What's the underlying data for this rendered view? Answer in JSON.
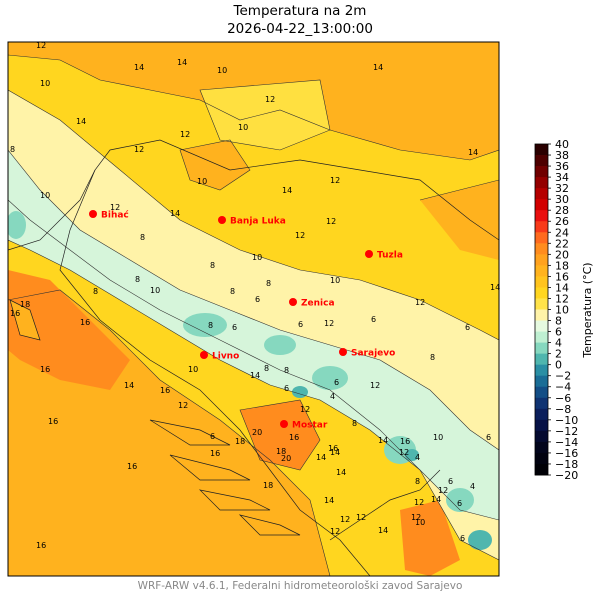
{
  "title": {
    "line1": "Temperatura na 2m",
    "line2": "2026-04-22_13:00:00"
  },
  "footer": "WRF-ARW v4.6.1, Federalni hidrometeorološki zavod Sarajevo",
  "colorbar": {
    "label": "Temperatura (°C)",
    "ticks": [
      "40",
      "38",
      "36",
      "34",
      "32",
      "30",
      "28",
      "26",
      "24",
      "22",
      "20",
      "18",
      "16",
      "14",
      "12",
      "10",
      "8",
      "6",
      "4",
      "2",
      "0",
      "−2",
      "−4",
      "−6",
      "−8",
      "−10",
      "−12",
      "−14",
      "−16",
      "−18",
      "−20"
    ],
    "colors": [
      "#2a0000",
      "#4d0000",
      "#700000",
      "#940000",
      "#b50000",
      "#d20000",
      "#ea1010",
      "#f83a1a",
      "#ff6a1e",
      "#ff8c1e",
      "#ffa21e",
      "#ffb31e",
      "#ffc41e",
      "#ffd620",
      "#ffe34a",
      "#fff3a8",
      "#e6fae0",
      "#bff0d2",
      "#86d8bf",
      "#4fb6ae",
      "#2a8fa4",
      "#1a6d96",
      "#134e86",
      "#0f3372",
      "#0b1f5c",
      "#071246",
      "#040a30",
      "#02051c",
      "#010210",
      "#000006"
    ]
  },
  "cities": [
    {
      "name": "Bihać"
    },
    {
      "name": "Banja Luka"
    },
    {
      "name": "Tuzla"
    },
    {
      "name": "Zenica"
    },
    {
      "name": "Livno"
    },
    {
      "name": "Sarajevo"
    },
    {
      "name": "Mostar"
    }
  ],
  "contour_labels": [
    "12",
    "14",
    "14",
    "10",
    "10",
    "12",
    "14",
    "12",
    "14",
    "14",
    "10",
    "10",
    "8",
    "10",
    "12",
    "14",
    "12",
    "12",
    "10",
    "8",
    "12",
    "14",
    "12",
    "8",
    "10",
    "10",
    "6",
    "8",
    "6",
    "6",
    "12",
    "12",
    "14",
    "16",
    "8",
    "8",
    "10",
    "12",
    "14",
    "16",
    "18",
    "16",
    "16",
    "14",
    "12",
    "16",
    "14",
    "6",
    "6",
    "8",
    "8",
    "4",
    "4",
    "6",
    "8",
    "8",
    "12",
    "10",
    "12",
    "14",
    "16",
    "18",
    "20",
    "14",
    "6",
    "4",
    "6",
    "8",
    "6",
    "6",
    "8",
    "8",
    "12",
    "12",
    "12",
    "14",
    "16",
    "16",
    "18",
    "12",
    "14",
    "12",
    "14",
    "10",
    "18",
    "12",
    "20",
    "16",
    "16",
    "14",
    "6",
    "16",
    "6"
  ],
  "colors": {
    "orange_fill": "#ffb21e",
    "yellow_fill": "#ffd61f",
    "red_city": "#ff0000"
  }
}
